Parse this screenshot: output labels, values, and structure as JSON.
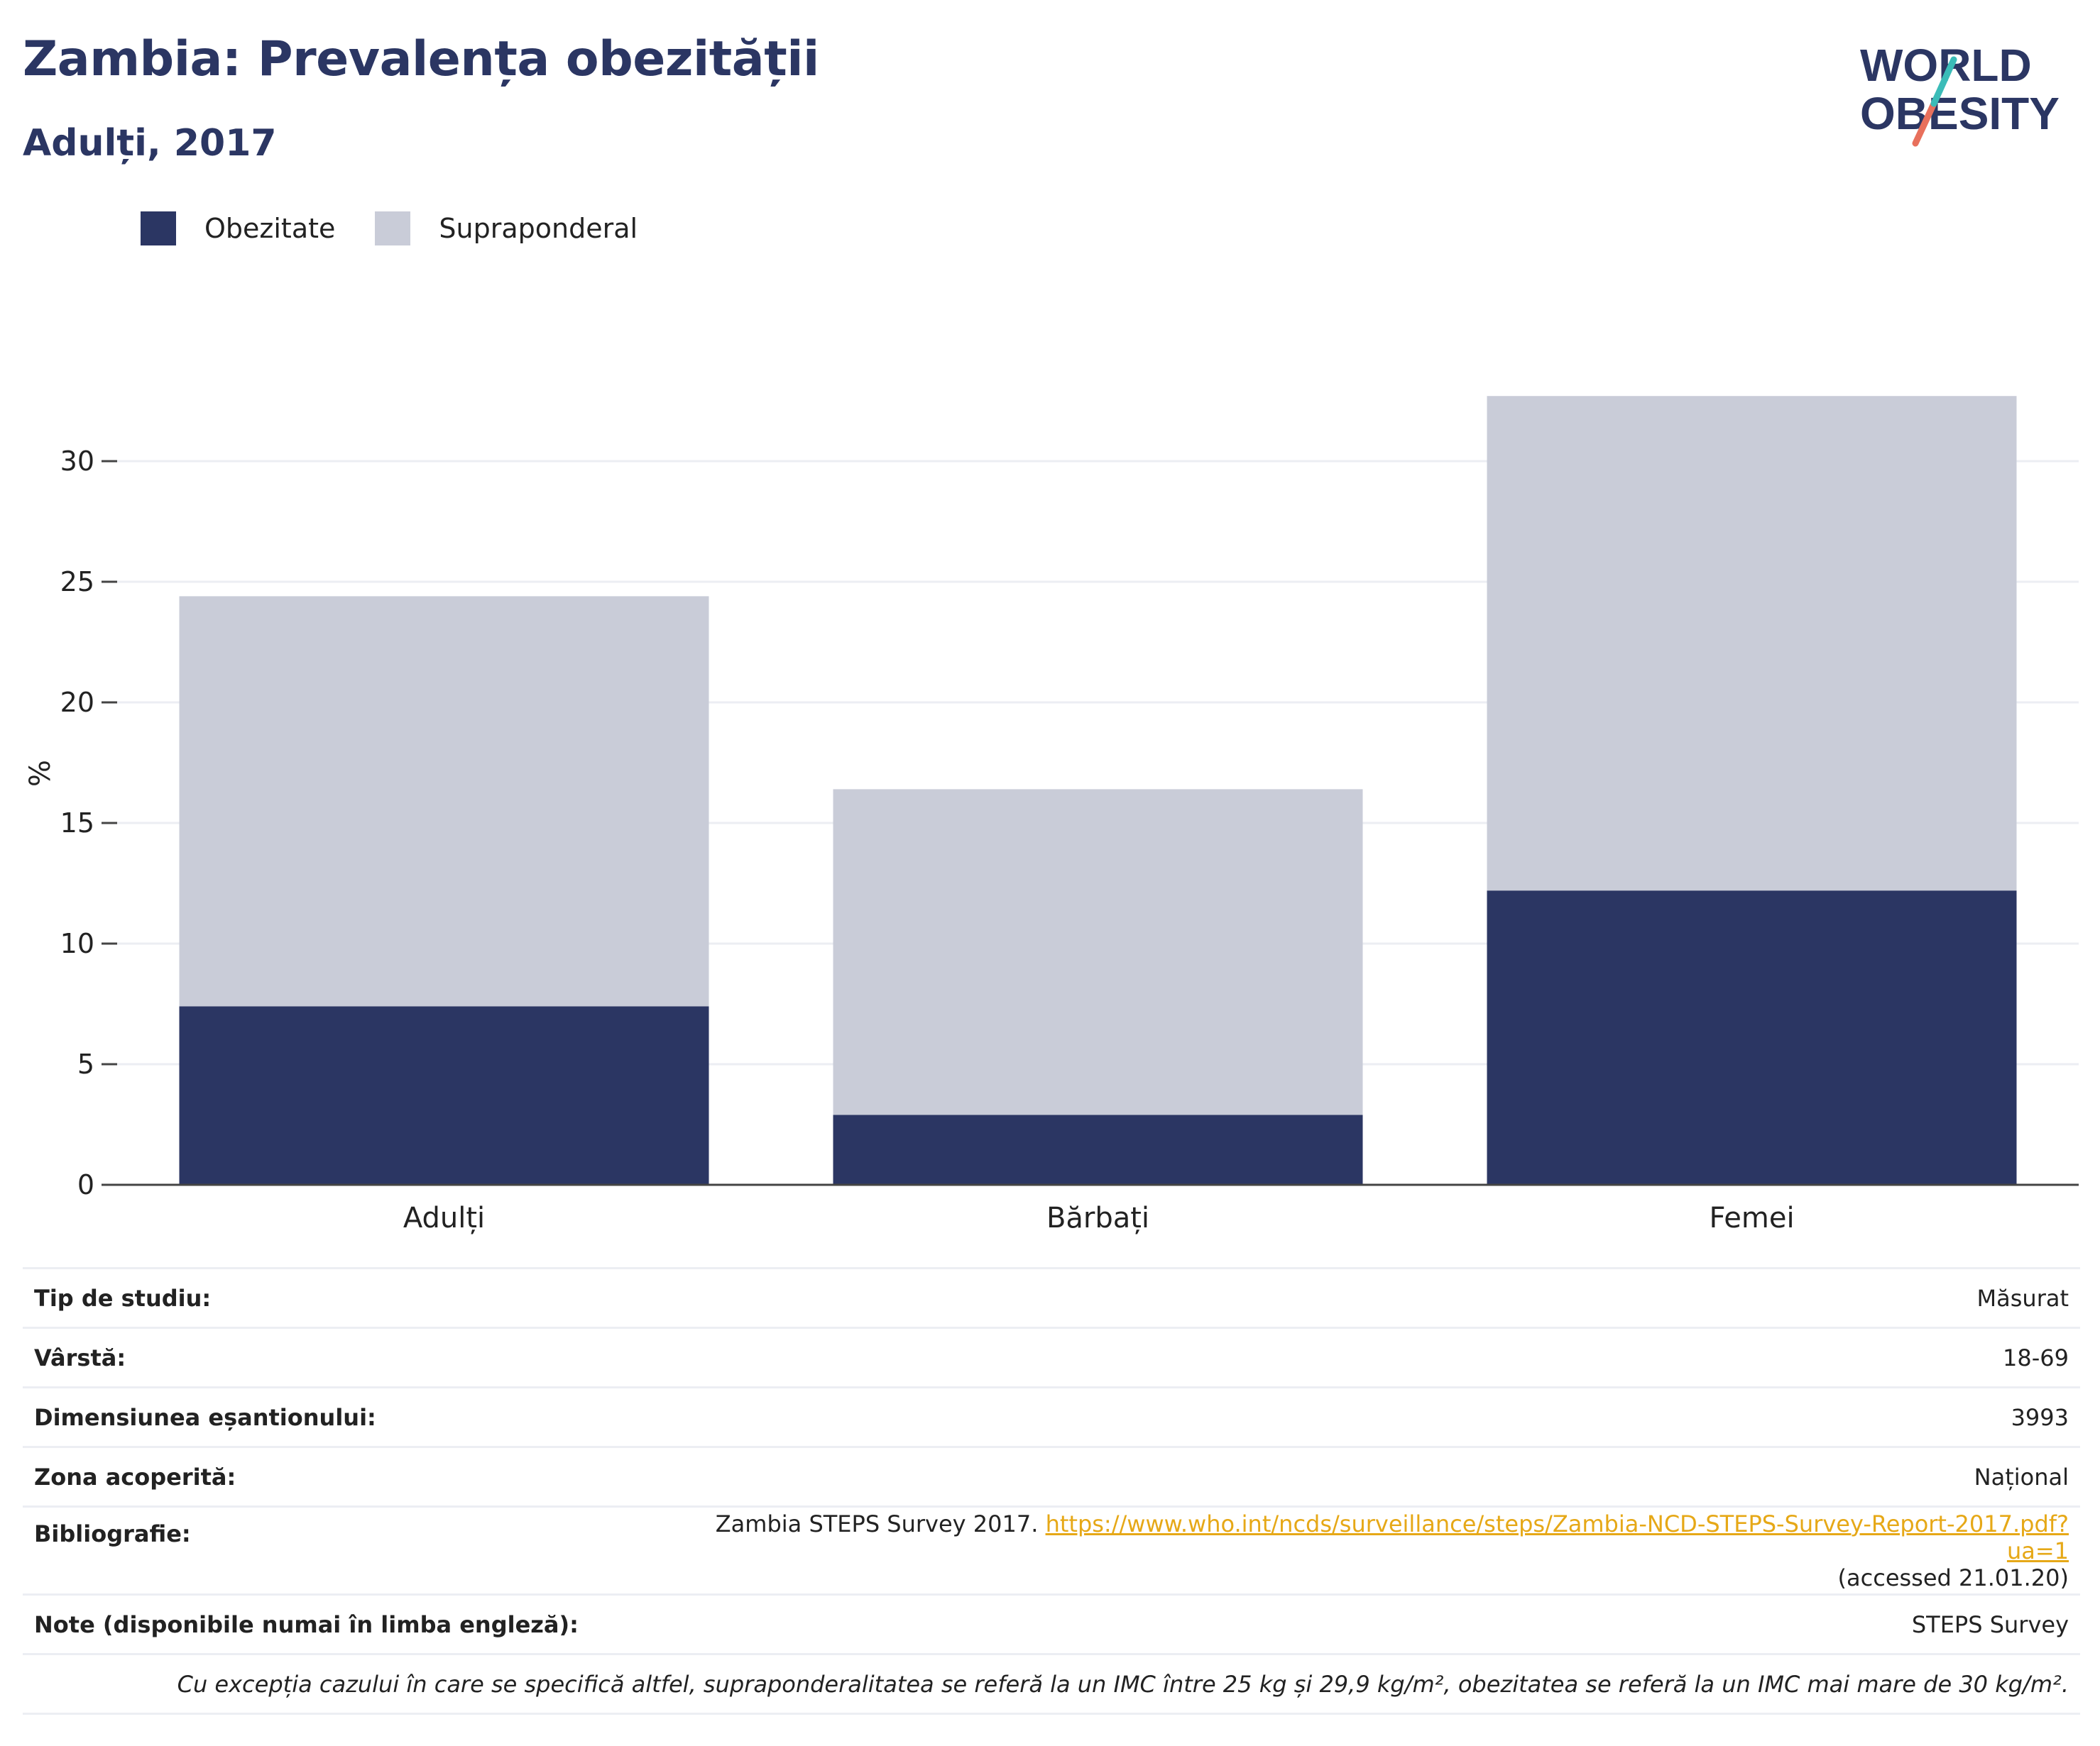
{
  "header": {
    "title": "Zambia: Prevalența obezității",
    "subtitle": "Adulți, 2017"
  },
  "logo": {
    "line1": "WORLD",
    "line2": "OBESITY"
  },
  "legend": [
    {
      "label": "Obezitate",
      "color": "#2b3663"
    },
    {
      "label": "Supraponderal",
      "color": "#c9ccd8"
    }
  ],
  "chart_data": {
    "type": "bar",
    "stacked": true,
    "categories": [
      "Adulți",
      "Bărbați",
      "Femei"
    ],
    "series": [
      {
        "name": "Obezitate",
        "color": "#2b3663",
        "values": [
          7.4,
          2.9,
          12.2
        ]
      },
      {
        "name": "Supraponderal",
        "color": "#c9ccd8",
        "values": [
          17.0,
          13.5,
          20.5
        ]
      }
    ],
    "ylabel": "%",
    "ylim": [
      0,
      35
    ],
    "yticks": [
      0,
      5,
      10,
      15,
      20,
      25,
      30
    ],
    "grid": true,
    "legend_position": "top-left"
  },
  "meta": {
    "rows": [
      {
        "key": "Tip de studiu:",
        "value": "Măsurat"
      },
      {
        "key": "Vârstă:",
        "value": "18-69"
      },
      {
        "key": "Dimensiunea eșantionului:",
        "value": "3993"
      },
      {
        "key": "Zona acoperită:",
        "value": "Național"
      }
    ],
    "bibliography": {
      "key": "Bibliografie:",
      "prefix": "Zambia STEPS Survey 2017.",
      "link": "https://www.who.int/ncds/surveillance/steps/Zambia-NCD-STEPS-Survey-Report-2017.pdf?ua=1",
      "accessed": "(accessed 21.01.20)"
    },
    "notes": {
      "key": "Note (disponibile numai în limba engleză):",
      "value": "STEPS Survey"
    },
    "footnote": "Cu excepția cazului în care se specifică altfel, supraponderalitatea se referă la un IMC între 25 kg și 29,9 kg/m², obezitatea se referă la un IMC mai mare de 30 kg/m²."
  }
}
